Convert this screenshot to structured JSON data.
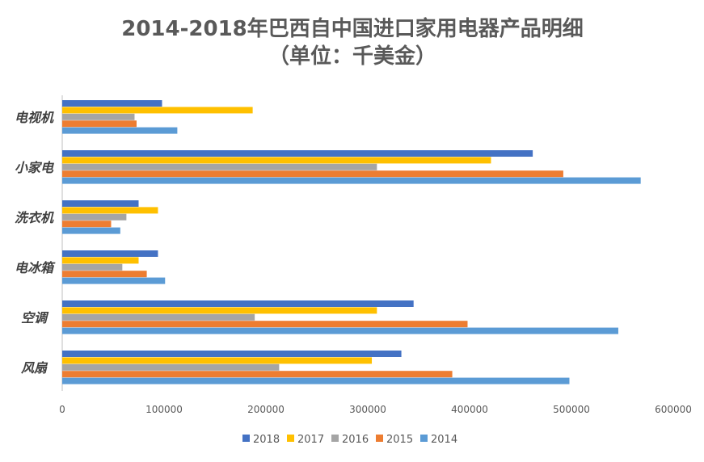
{
  "chart_data": {
    "type": "bar",
    "orientation": "horizontal",
    "title": "2014-2018年巴西自中国进口家用电器产品明细",
    "subtitle": "（单位：千美金）",
    "categories": [
      "电视机",
      "小家电",
      "洗衣机",
      "电冰箱",
      "空调",
      "风扇"
    ],
    "series": [
      {
        "name": "2018",
        "color": "#4472C4",
        "values": [
          98000,
          462000,
          75000,
          94000,
          345000,
          333000
        ]
      },
      {
        "name": "2017",
        "color": "#FFC000",
        "values": [
          187000,
          421000,
          94000,
          75000,
          309000,
          304000
        ]
      },
      {
        "name": "2016",
        "color": "#A5A5A5",
        "values": [
          71000,
          309000,
          63000,
          59000,
          189000,
          213000
        ]
      },
      {
        "name": "2015",
        "color": "#ED7D31",
        "values": [
          73000,
          492000,
          48000,
          83000,
          398000,
          383000
        ]
      },
      {
        "name": "2014",
        "color": "#5B9BD5",
        "values": [
          113000,
          568000,
          57000,
          101000,
          546000,
          498000
        ]
      }
    ],
    "xlim": [
      0,
      600000
    ],
    "xticks": [
      "0",
      "100000",
      "200000",
      "300000",
      "400000",
      "500000",
      "600000"
    ],
    "xlabel": "",
    "ylabel": "",
    "grid": false,
    "legend": "bottom"
  }
}
